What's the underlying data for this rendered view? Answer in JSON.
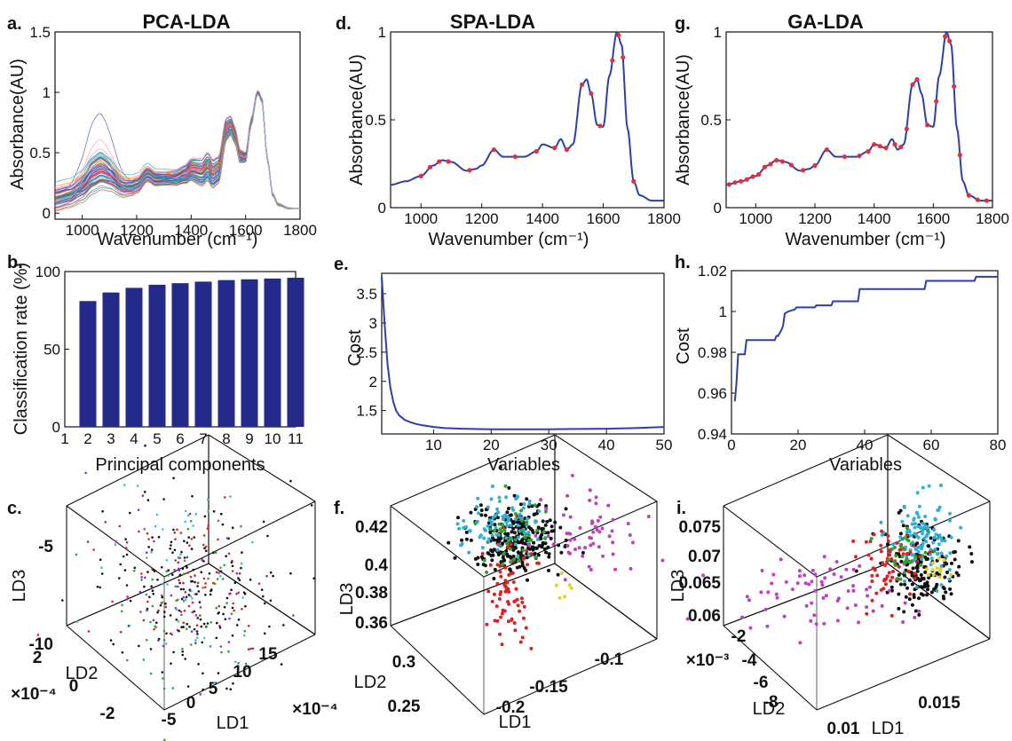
{
  "colors": {
    "spectrum_line": "#2b3fb0",
    "marker": "#e0303a",
    "bar": "#232a8a",
    "axis": "#111111"
  },
  "chart_data": [
    {
      "id": "a",
      "panel_label": "a.",
      "title": "PCA-LDA",
      "type": "line",
      "xlabel": "Wavenumber (cm⁻¹)",
      "ylabel": "Absorbance(AU)",
      "xlim": [
        900,
        1800
      ],
      "ylim": [
        -0.05,
        1.5
      ],
      "xticks": [
        "1000",
        "1200",
        "1400",
        "1600",
        "1800"
      ],
      "yticks": [
        "0",
        "0.5",
        "1",
        "1.5"
      ],
      "mean_spectrum": {
        "x": [
          900,
          950,
          1000,
          1040,
          1070,
          1100,
          1150,
          1180,
          1200,
          1240,
          1270,
          1300,
          1340,
          1380,
          1400,
          1440,
          1460,
          1480,
          1500,
          1530,
          1545,
          1560,
          1580,
          1600,
          1620,
          1645,
          1660,
          1680,
          1700,
          1720,
          1760,
          1800
        ],
        "y": [
          0.13,
          0.15,
          0.18,
          0.24,
          0.27,
          0.26,
          0.21,
          0.22,
          0.24,
          0.33,
          0.29,
          0.29,
          0.29,
          0.32,
          0.36,
          0.34,
          0.39,
          0.33,
          0.36,
          0.7,
          0.73,
          0.65,
          0.47,
          0.46,
          0.75,
          1.0,
          0.93,
          0.45,
          0.15,
          0.07,
          0.04,
          0.04
        ]
      },
      "n_spectra": 60
    },
    {
      "id": "b",
      "panel_label": "b.",
      "type": "bar",
      "xlabel": "Principal components",
      "ylabel": "Classification rate (%)",
      "ylim": [
        0,
        100
      ],
      "xticks": [
        "1",
        "2",
        "3",
        "4",
        "5",
        "6",
        "7",
        "8",
        "9",
        "10",
        "11"
      ],
      "yticks": [
        "0",
        "50",
        "100"
      ],
      "categories": [
        "2",
        "3",
        "4",
        "5",
        "6",
        "7",
        "8",
        "9",
        "10",
        "11"
      ],
      "values": [
        81,
        86.5,
        89.5,
        91.5,
        92.5,
        93.5,
        94.5,
        95,
        95.5,
        96
      ]
    },
    {
      "id": "c",
      "panel_label": "c.",
      "type": "scatter",
      "xlabel": "LD1",
      "ylabel": "LD2",
      "zlabel": "LD3",
      "z_ticks": [
        "-5",
        "-10"
      ],
      "y_ticks": [
        "2",
        "0",
        "-2"
      ],
      "x_ticks": [
        "-5",
        "0",
        "5",
        "10",
        "15"
      ],
      "y_scale": "×10⁻⁴",
      "x_scale": "×10⁻⁴",
      "groups": [
        {
          "color": "#e02020",
          "n": 80
        },
        {
          "color": "#111111",
          "n": 180
        },
        {
          "color": "#2ea12e",
          "n": 60
        },
        {
          "color": "#8a2be2",
          "n": 40
        },
        {
          "color": "#40b8e0",
          "n": 40
        }
      ]
    },
    {
      "id": "d",
      "panel_label": "d.",
      "title": "SPA-LDA",
      "type": "line",
      "xlabel": "Wavenumber (cm⁻¹)",
      "ylabel": "Absorbance(AU)",
      "xlim": [
        900,
        1800
      ],
      "ylim": [
        0,
        1.0
      ],
      "xticks": [
        "1000",
        "1200",
        "1400",
        "1600",
        "1800"
      ],
      "yticks": [
        "0",
        "0.5",
        "1"
      ],
      "selected_x": [
        1000,
        1030,
        1060,
        1090,
        1160,
        1240,
        1310,
        1380,
        1440,
        1480,
        1530,
        1560,
        1590,
        1630,
        1650,
        1665,
        1700
      ]
    },
    {
      "id": "e",
      "panel_label": "e.",
      "type": "line",
      "xlabel": "Variables",
      "ylabel": "Cost",
      "xlim": [
        1,
        50
      ],
      "ylim": [
        1.1,
        3.85
      ],
      "xticks": [
        "10",
        "20",
        "30",
        "40",
        "50"
      ],
      "yticks": [
        "1.5",
        "2",
        "2.5",
        "3",
        "3.5"
      ],
      "x": [
        1,
        1.5,
        2,
        2.5,
        3,
        3.5,
        4,
        5,
        6,
        7,
        8,
        10,
        12,
        15,
        20,
        25,
        30,
        35,
        40,
        45,
        50
      ],
      "y": [
        3.8,
        3.0,
        2.3,
        1.9,
        1.65,
        1.5,
        1.42,
        1.34,
        1.3,
        1.27,
        1.25,
        1.22,
        1.2,
        1.19,
        1.18,
        1.18,
        1.18,
        1.185,
        1.19,
        1.2,
        1.22
      ]
    },
    {
      "id": "f",
      "panel_label": "f.",
      "type": "scatter",
      "xlabel": "LD1",
      "ylabel": "LD2",
      "zlabel": "LD3",
      "z_ticks": [
        "0.42",
        "0.4",
        "0.38",
        "0.36"
      ],
      "y_ticks": [
        "0.3",
        "0.25"
      ],
      "x_ticks": [
        "-0.2",
        "-0.15",
        "-0.1"
      ],
      "groups": [
        {
          "color": "#111111",
          "n": 280
        },
        {
          "color": "#30b0d8",
          "n": 90
        },
        {
          "color": "#e02020",
          "n": 70
        },
        {
          "color": "#c040c0",
          "n": 60
        },
        {
          "color": "#2ea12e",
          "n": 40
        },
        {
          "color": "#e0d020",
          "n": 6
        }
      ]
    },
    {
      "id": "g",
      "panel_label": "g.",
      "title": "GA-LDA",
      "type": "line",
      "xlabel": "Wavenumber (cm⁻¹)",
      "ylabel": "Absorbance(AU)",
      "xlim": [
        900,
        1800
      ],
      "ylim": [
        0,
        1.0
      ],
      "xticks": [
        "1000",
        "1200",
        "1400",
        "1600",
        "1800"
      ],
      "yticks": [
        "0",
        "0.5",
        "1"
      ],
      "selected_x": [
        910,
        930,
        950,
        970,
        990,
        1010,
        1030,
        1050,
        1070,
        1090,
        1120,
        1160,
        1200,
        1240,
        1300,
        1350,
        1380,
        1400,
        1420,
        1440,
        1470,
        1490,
        1510,
        1530,
        1545,
        1580,
        1610,
        1640,
        1655,
        1670,
        1690,
        1720,
        1750,
        1780
      ]
    },
    {
      "id": "h",
      "panel_label": "h.",
      "type": "line",
      "xlabel": "Variables",
      "ylabel": "Cost",
      "xlim": [
        0,
        80
      ],
      "ylim": [
        0.94,
        1.02
      ],
      "xticks": [
        "0",
        "20",
        "40",
        "60",
        "80"
      ],
      "yticks": [
        "0.94",
        "0.96",
        "0.98",
        "1",
        "1.02"
      ],
      "x": [
        1,
        1.5,
        2,
        2.5,
        3,
        3.5,
        4,
        4.5,
        5,
        13,
        13.5,
        14,
        15,
        15.5,
        16,
        17,
        19,
        19.5,
        25,
        25.5,
        30,
        30.5,
        38,
        38.5,
        58,
        58.5,
        73,
        73.5,
        80
      ],
      "y": [
        0.956,
        0.965,
        0.979,
        0.979,
        0.979,
        0.979,
        0.979,
        0.986,
        0.986,
        0.986,
        0.988,
        0.988,
        0.991,
        0.993,
        0.999,
        1.0,
        1.001,
        1.002,
        1.002,
        1.003,
        1.003,
        1.005,
        1.005,
        1.011,
        1.011,
        1.015,
        1.015,
        1.017,
        1.017
      ]
    },
    {
      "id": "i",
      "panel_label": "i.",
      "type": "scatter",
      "xlabel": "LD1",
      "ylabel": "LD2",
      "zlabel": "LD3",
      "z_ticks": [
        "0.075",
        "0.07",
        "0.065",
        "0.06"
      ],
      "y_ticks": [
        "-2",
        "-4",
        "-6",
        "-8"
      ],
      "x_ticks": [
        "0.015",
        "0.01"
      ],
      "y_scale": "×10⁻³",
      "groups": [
        {
          "color": "#111111",
          "n": 160
        },
        {
          "color": "#30b0d8",
          "n": 110
        },
        {
          "color": "#e02020",
          "n": 60
        },
        {
          "color": "#c040c0",
          "n": 70
        },
        {
          "color": "#2ea12e",
          "n": 30
        },
        {
          "color": "#e0d020",
          "n": 12
        }
      ]
    }
  ]
}
